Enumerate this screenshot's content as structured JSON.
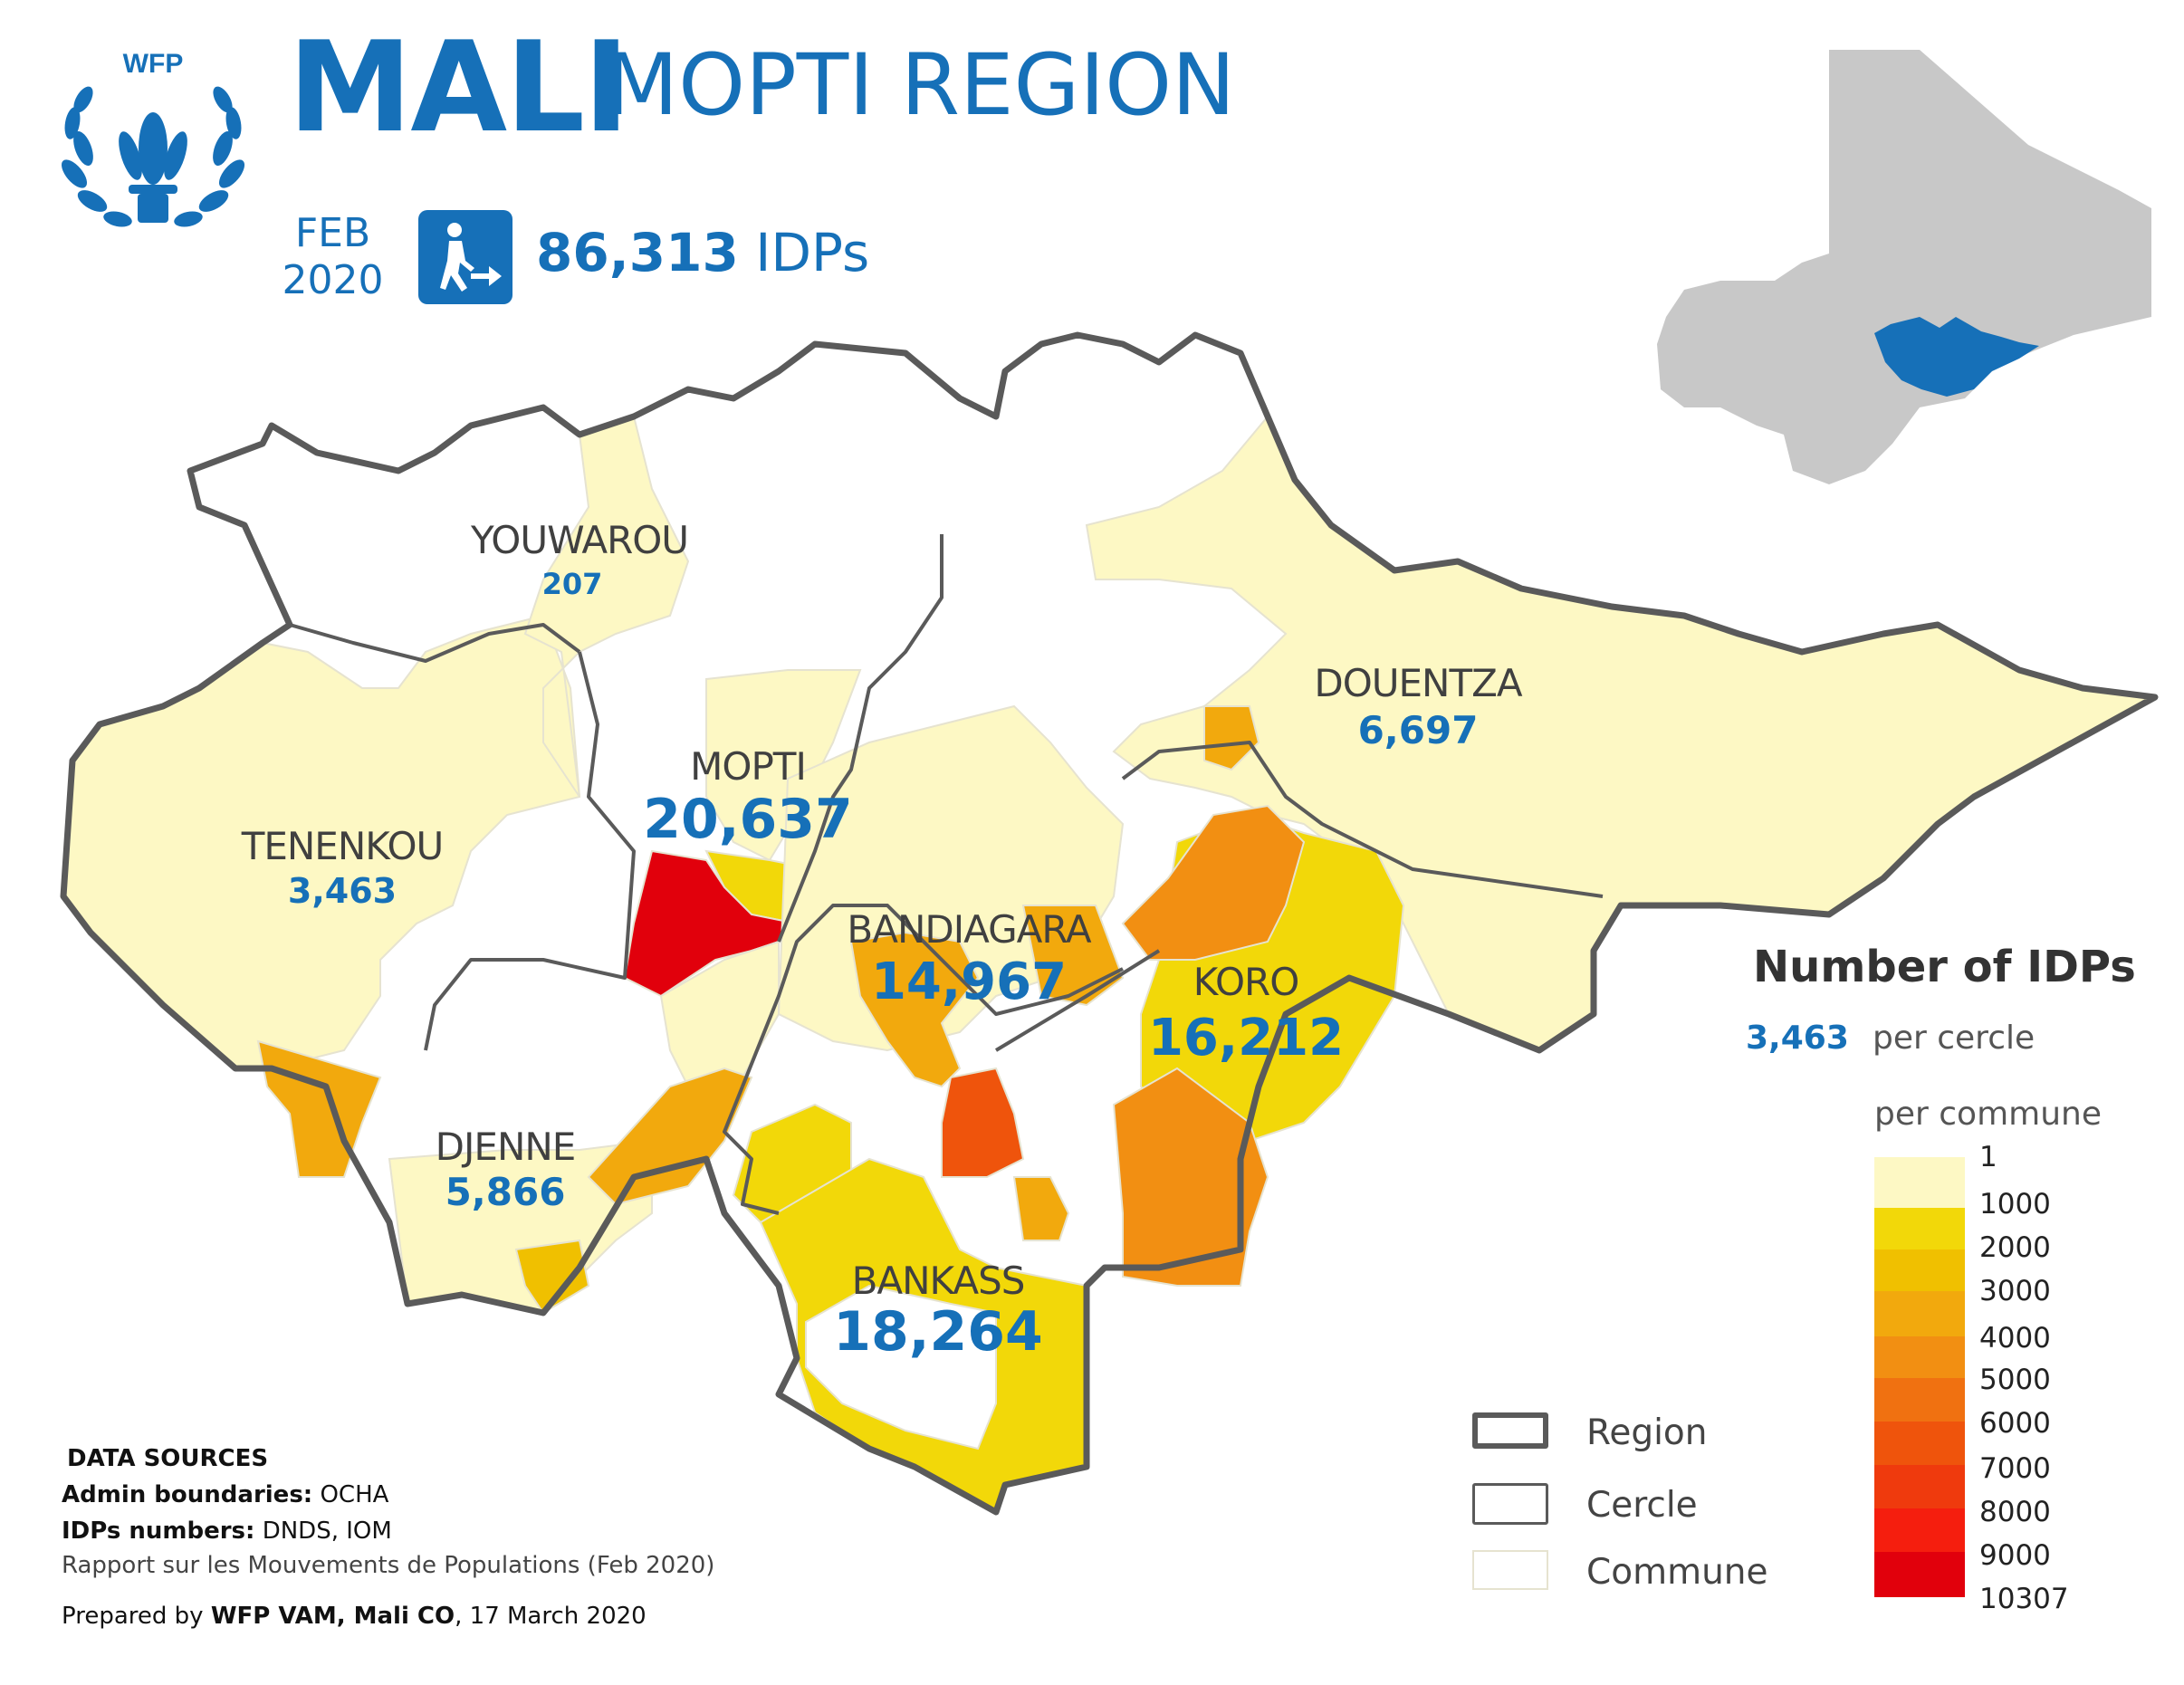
{
  "header": {
    "logo_text": "WFP",
    "title_main": "MALI",
    "title_sub": "MOPTI REGION",
    "date_month": "FEB",
    "date_year": "2020",
    "idp_total_number": "86,313",
    "idp_total_unit": "IDPs",
    "idp_icon": "person-walking-arrow-icon"
  },
  "cercles": [
    {
      "name": "YOUWAROU",
      "value": "207"
    },
    {
      "name": "DOUENTZA",
      "value": "6,697"
    },
    {
      "name": "MOPTI",
      "value": "20,637"
    },
    {
      "name": "TENENKOU",
      "value": "3,463"
    },
    {
      "name": "BANDIAGARA",
      "value": "14,967"
    },
    {
      "name": "KORO",
      "value": "16,212"
    },
    {
      "name": "DJENNE",
      "value": "5,866"
    },
    {
      "name": "BANKASS",
      "value": "18,264"
    }
  ],
  "legend": {
    "title": "Number of IDPs",
    "sample_value": "3,463",
    "per_cercle": "per cercle",
    "per_commune": "per commune",
    "bins": [
      {
        "label": "1",
        "color": "#fdf8c4"
      },
      {
        "label": "1000",
        "color": "#f2d809"
      },
      {
        "label": "2000",
        "color": "#f0c000"
      },
      {
        "label": "3000",
        "color": "#f2a90d"
      },
      {
        "label": "4000",
        "color": "#f28f12"
      },
      {
        "label": "5000",
        "color": "#f07111"
      },
      {
        "label": "6000",
        "color": "#ef540c"
      },
      {
        "label": "7000",
        "color": "#ef3a0d"
      },
      {
        "label": "8000",
        "color": "#f51e0e"
      },
      {
        "label": "9000",
        "color": "#fe0000"
      },
      {
        "label": "10307",
        "color": "#e1000c"
      }
    ],
    "boundaries": [
      "Region",
      "Cercle",
      "Commune"
    ]
  },
  "sources": {
    "heading": "DATA SOURCES",
    "admin_label": "Admin boundaries:",
    "admin_value": "OCHA",
    "idp_label": "IDPs numbers:",
    "idp_value": "DNDS, IOM",
    "report": "Rapport sur les Mouvements de Populations (Feb 2020)",
    "prepared_prefix": "Prepared by",
    "prepared_by": "WFP VAM, Mali CO",
    "prepared_date": ", 17 March 2020"
  },
  "colors": {
    "brand_blue": "#1670b8",
    "inset_country": "#c8c8c8",
    "inset_region": "#1670b8",
    "boundary": "#5a5a5a"
  }
}
